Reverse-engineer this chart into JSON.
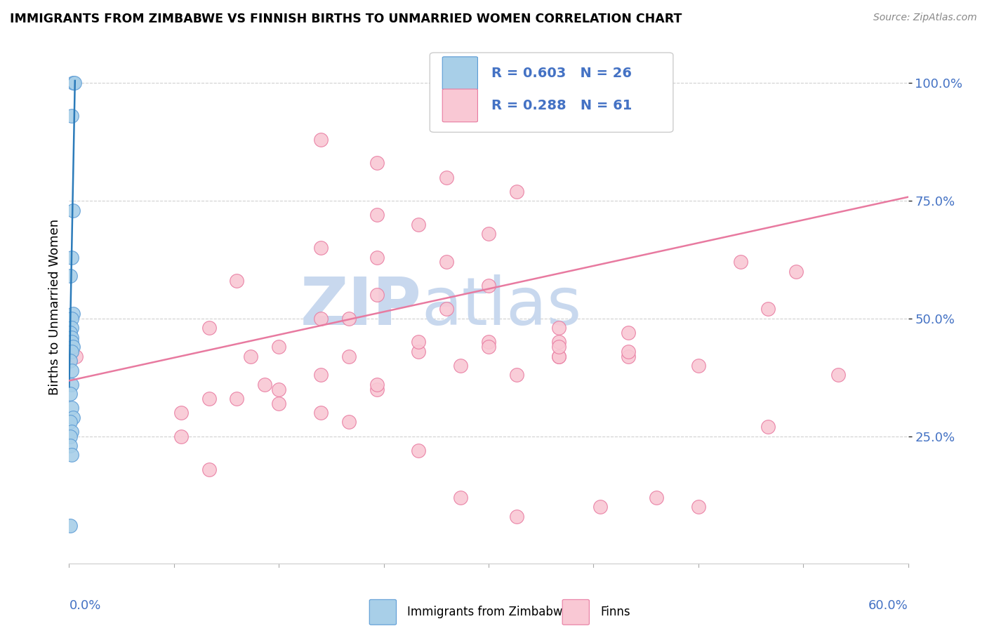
{
  "title": "IMMIGRANTS FROM ZIMBABWE VS FINNISH BIRTHS TO UNMARRIED WOMEN CORRELATION CHART",
  "source": "Source: ZipAtlas.com",
  "ylabel": "Births to Unmarried Women",
  "ytick_labels": [
    "25.0%",
    "50.0%",
    "75.0%",
    "100.0%"
  ],
  "ytick_values": [
    0.25,
    0.5,
    0.75,
    1.0
  ],
  "xlim": [
    0.0,
    0.6
  ],
  "ylim": [
    -0.02,
    1.07
  ],
  "legend_line1": "R = 0.603   N = 26",
  "legend_line2": "R = 0.288   N = 61",
  "blue_fill": "#a8cfe8",
  "blue_edge": "#5b9bd5",
  "blue_line_color": "#2b7bba",
  "pink_fill": "#f9c8d4",
  "pink_edge": "#e87aa0",
  "pink_line_color": "#e87aa0",
  "text_blue": "#4472c4",
  "watermark_color": "#c8d8ee",
  "blue_scatter_x": [
    0.003,
    0.004,
    0.002,
    0.003,
    0.002,
    0.001,
    0.003,
    0.002,
    0.002,
    0.001,
    0.002,
    0.002,
    0.003,
    0.002,
    0.001,
    0.002,
    0.002,
    0.001,
    0.002,
    0.003,
    0.001,
    0.002,
    0.001,
    0.001,
    0.002,
    0.001
  ],
  "blue_scatter_y": [
    1.0,
    1.0,
    0.93,
    0.73,
    0.63,
    0.59,
    0.51,
    0.5,
    0.48,
    0.47,
    0.46,
    0.45,
    0.44,
    0.43,
    0.41,
    0.39,
    0.36,
    0.34,
    0.31,
    0.29,
    0.28,
    0.26,
    0.25,
    0.23,
    0.21,
    0.06
  ],
  "pink_scatter_x": [
    0.3,
    0.18,
    0.22,
    0.27,
    0.32,
    0.22,
    0.25,
    0.3,
    0.18,
    0.22,
    0.27,
    0.12,
    0.3,
    0.22,
    0.27,
    0.2,
    0.35,
    0.4,
    0.3,
    0.35,
    0.25,
    0.4,
    0.35,
    0.5,
    0.45,
    0.55,
    0.52,
    0.48,
    0.08,
    0.1,
    0.15,
    0.13,
    0.18,
    0.14,
    0.22,
    0.1,
    0.15,
    0.08,
    0.2,
    0.18,
    0.25,
    0.3,
    0.35,
    0.28,
    0.32,
    0.22,
    0.15,
    0.12,
    0.4,
    0.35,
    0.18,
    0.1,
    0.28,
    0.42,
    0.45,
    0.5,
    0.38,
    0.32,
    0.2,
    0.25,
    0.005
  ],
  "pink_scatter_y": [
    1.0,
    0.88,
    0.83,
    0.8,
    0.77,
    0.72,
    0.7,
    0.68,
    0.65,
    0.63,
    0.62,
    0.58,
    0.57,
    0.55,
    0.52,
    0.5,
    0.48,
    0.47,
    0.45,
    0.45,
    0.43,
    0.42,
    0.42,
    0.52,
    0.4,
    0.38,
    0.6,
    0.62,
    0.25,
    0.48,
    0.44,
    0.42,
    0.38,
    0.36,
    0.35,
    0.33,
    0.32,
    0.3,
    0.28,
    0.5,
    0.45,
    0.44,
    0.42,
    0.4,
    0.38,
    0.36,
    0.35,
    0.33,
    0.43,
    0.44,
    0.3,
    0.18,
    0.12,
    0.12,
    0.1,
    0.27,
    0.1,
    0.08,
    0.42,
    0.22,
    0.42
  ],
  "blue_line_x": [
    0.0,
    0.0042
  ],
  "blue_line_y": [
    0.355,
    1.005
  ],
  "pink_line_x": [
    0.0,
    0.6
  ],
  "pink_line_y": [
    0.368,
    0.758
  ]
}
